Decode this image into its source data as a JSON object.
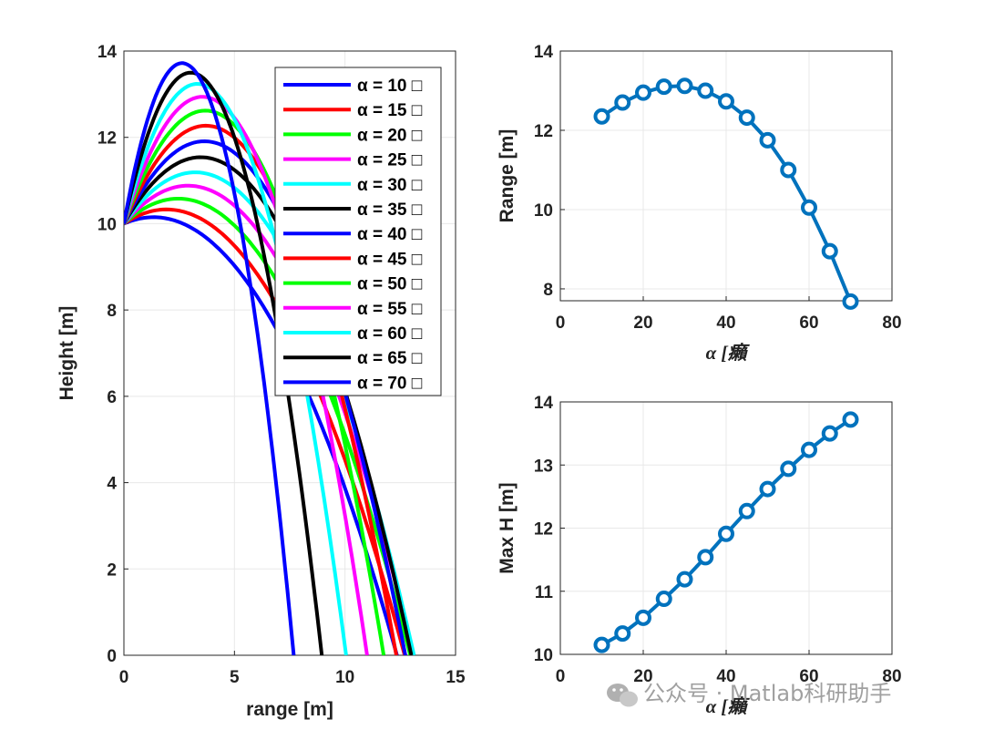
{
  "chart_data": [
    {
      "type": "line",
      "xlabel": "range [m]",
      "ylabel": "Height [m]",
      "xlim": [
        0,
        15
      ],
      "ylim": [
        0,
        14
      ],
      "xticks": [
        0,
        5,
        10,
        15
      ],
      "yticks": [
        0,
        2,
        4,
        6,
        8,
        10,
        12,
        14
      ],
      "grid": true,
      "legend_location": "top-right",
      "initial_height": 10,
      "series": [
        {
          "name": "α = 10 □",
          "color": "#0000ff",
          "range": 12.35,
          "max_height": 10.15
        },
        {
          "name": "α = 15 □",
          "color": "#ff0000",
          "range": 12.7,
          "max_height": 10.33
        },
        {
          "name": "α = 20 □",
          "color": "#00ff00",
          "range": 12.95,
          "max_height": 10.58
        },
        {
          "name": "α = 25 □",
          "color": "#ff00ff",
          "range": 13.1,
          "max_height": 10.88
        },
        {
          "name": "α = 30 □",
          "color": "#00ffff",
          "range": 13.12,
          "max_height": 11.19
        },
        {
          "name": "α = 35 □",
          "color": "#000000",
          "range": 13.0,
          "max_height": 11.54
        },
        {
          "name": "α = 40 □",
          "color": "#0000ff",
          "range": 12.73,
          "max_height": 11.91
        },
        {
          "name": "α = 45 □",
          "color": "#ff0000",
          "range": 12.32,
          "max_height": 12.27
        },
        {
          "name": "α = 50 □",
          "color": "#00ff00",
          "range": 11.75,
          "max_height": 12.62
        },
        {
          "name": "α = 55 □",
          "color": "#ff00ff",
          "range": 11.0,
          "max_height": 12.94
        },
        {
          "name": "α = 60 □",
          "color": "#00ffff",
          "range": 10.05,
          "max_height": 13.24
        },
        {
          "name": "α = 65 □",
          "color": "#000000",
          "range": 8.95,
          "max_height": 13.5
        },
        {
          "name": "α = 70 □",
          "color": "#0000ff",
          "range": 7.68,
          "max_height": 13.72
        }
      ]
    },
    {
      "type": "line",
      "xlabel": "α [癩",
      "ylabel": "Range [m]",
      "xlim": [
        0,
        80
      ],
      "ylim": [
        7.7,
        14
      ],
      "xticks": [
        0,
        20,
        40,
        60,
        80
      ],
      "yticks": [
        8,
        10,
        12,
        14
      ],
      "grid": true,
      "marker": "circle",
      "color": "#0072bd",
      "x": [
        10,
        15,
        20,
        25,
        30,
        35,
        40,
        45,
        50,
        55,
        60,
        65,
        70
      ],
      "y": [
        12.35,
        12.7,
        12.95,
        13.1,
        13.12,
        13.0,
        12.73,
        12.32,
        11.75,
        11.0,
        10.05,
        8.95,
        7.68
      ]
    },
    {
      "type": "line",
      "xlabel": "α [癩",
      "ylabel": "Max H [m]",
      "xlim": [
        0,
        80
      ],
      "ylim": [
        10,
        14
      ],
      "xticks": [
        0,
        20,
        40,
        60,
        80
      ],
      "yticks": [
        10,
        11,
        12,
        13,
        14
      ],
      "grid": true,
      "marker": "circle",
      "color": "#0072bd",
      "x": [
        10,
        15,
        20,
        25,
        30,
        35,
        40,
        45,
        50,
        55,
        60,
        65,
        70
      ],
      "y": [
        10.15,
        10.33,
        10.58,
        10.88,
        11.19,
        11.54,
        11.91,
        12.27,
        12.62,
        12.94,
        13.24,
        13.5,
        13.72
      ]
    }
  ],
  "watermark": {
    "text": "公众号 · Matlab科研助手",
    "icon": "wechat-icon"
  }
}
